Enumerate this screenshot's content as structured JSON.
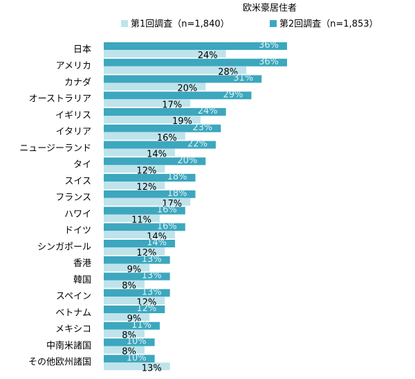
{
  "chart_data": {
    "type": "bar",
    "orientation": "horizontal",
    "title": "欧米豪居住者",
    "categories": [
      "日本",
      "アメリカ",
      "カナダ",
      "オーストラリア",
      "イギリス",
      "イタリア",
      "ニュージーランド",
      "タイ",
      "スイス",
      "フランス",
      "ハワイ",
      "ドイツ",
      "シンガポール",
      "香港",
      "韓国",
      "スペイン",
      "ベトナム",
      "メキシコ",
      "中南米諸国",
      "その他欧州諸国"
    ],
    "series": [
      {
        "name": "第1回調査（n=1,840）",
        "color": "#bfe3eb",
        "values": [
          24,
          28,
          20,
          17,
          19,
          16,
          14,
          12,
          12,
          17,
          11,
          14,
          12,
          9,
          8,
          12,
          9,
          8,
          8,
          13
        ],
        "value_labels": [
          "24%",
          "28%",
          "20%",
          "17%",
          "19%",
          "16%",
          "14%",
          "12%",
          "12%",
          "17%",
          "11%",
          "14%",
          "12%",
          "9%",
          "8%",
          "12%",
          "9%",
          "8%",
          "8%",
          "13%"
        ]
      },
      {
        "name": "第2回調査（n=1,853）",
        "color": "#3ca7be",
        "values": [
          36,
          36,
          31,
          29,
          24,
          23,
          22,
          20,
          18,
          18,
          16,
          16,
          14,
          13,
          13,
          13,
          12,
          11,
          10,
          10
        ],
        "value_labels": [
          "36%",
          "36%",
          "31%",
          "29%",
          "24%",
          "23%",
          "22%",
          "20%",
          "18%",
          "18%",
          "16%",
          "16%",
          "14%",
          "13%",
          "13%",
          "13%",
          "12%",
          "11%",
          "10%",
          "10%"
        ]
      }
    ]
  }
}
